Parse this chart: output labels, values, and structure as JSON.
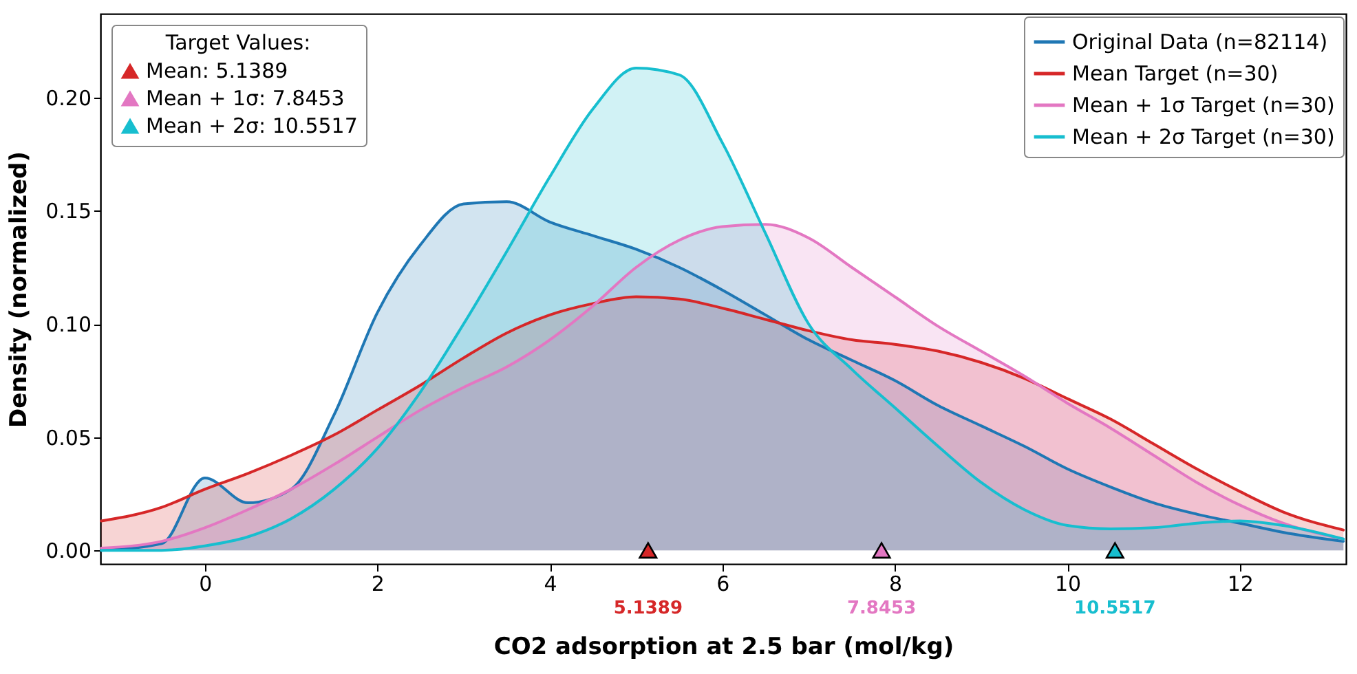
{
  "chart_data": {
    "type": "area",
    "xlabel": "CO2 adsorption at 2.5 bar (mol/kg)",
    "ylabel": "Density (normalized)",
    "legend_title": "Target Values:",
    "x": [
      -1.2,
      -0.5,
      0,
      0.5,
      1,
      1.5,
      2,
      2.5,
      3,
      3.5,
      4,
      4.5,
      5,
      5.5,
      6,
      6.5,
      7,
      7.5,
      8,
      8.5,
      9,
      9.5,
      10,
      10.5,
      11,
      11.5,
      12,
      12.5,
      13.2
    ],
    "series": [
      {
        "name": "Original Data (n=82114)",
        "color": "#1f77b4",
        "values": [
          0,
          0.003,
          0.032,
          0.021,
          0.027,
          0.06,
          0.105,
          0.135,
          0.153,
          0.154,
          0.145,
          0.139,
          0.133,
          0.125,
          0.115,
          0.104,
          0.093,
          0.084,
          0.075,
          0.064,
          0.055,
          0.046,
          0.036,
          0.028,
          0.021,
          0.016,
          0.012,
          0.008,
          0.004
        ]
      },
      {
        "name": "Mean Target (n=30)",
        "color": "#d62728",
        "values": [
          0.013,
          0.019,
          0.027,
          0.034,
          0.042,
          0.051,
          0.062,
          0.073,
          0.085,
          0.096,
          0.104,
          0.109,
          0.112,
          0.111,
          0.107,
          0.102,
          0.097,
          0.093,
          0.091,
          0.088,
          0.083,
          0.076,
          0.067,
          0.058,
          0.047,
          0.036,
          0.026,
          0.017,
          0.009
        ]
      },
      {
        "name": "Mean + 1σ Target (n=30)",
        "color": "#e377c2",
        "values": [
          0.001,
          0.004,
          0.01,
          0.018,
          0.027,
          0.038,
          0.05,
          0.062,
          0.072,
          0.081,
          0.093,
          0.108,
          0.125,
          0.137,
          0.143,
          0.144,
          0.138,
          0.125,
          0.112,
          0.099,
          0.088,
          0.077,
          0.065,
          0.054,
          0.042,
          0.03,
          0.02,
          0.012,
          0.005
        ]
      },
      {
        "name": "Mean + 2σ Target (n=30)",
        "color": "#17becf",
        "values": [
          0,
          0,
          0.002,
          0.006,
          0.014,
          0.027,
          0.045,
          0.07,
          0.1,
          0.132,
          0.165,
          0.195,
          0.213,
          0.21,
          0.18,
          0.14,
          0.1,
          0.08,
          0.063,
          0.046,
          0.03,
          0.018,
          0.011,
          0.0095,
          0.01,
          0.012,
          0.013,
          0.011,
          0.005
        ]
      },
      {
        "name": "Mean: 5.1389",
        "type": "scatter",
        "marker": "triangle",
        "color": "#d62728",
        "x": [
          5.1389
        ],
        "values": [
          0
        ]
      },
      {
        "name": "Mean + 1σ: 7.8453",
        "type": "scatter",
        "marker": "triangle",
        "color": "#e377c2",
        "x": [
          7.8453
        ],
        "values": [
          0
        ]
      },
      {
        "name": "Mean + 2σ: 10.5517",
        "type": "scatter",
        "marker": "triangle",
        "color": "#17becf",
        "x": [
          10.5517
        ],
        "values": [
          0
        ]
      }
    ],
    "annotations": [
      {
        "text": "5.1389",
        "x": 5.1389,
        "y": 0
      },
      {
        "text": "7.8453",
        "x": 7.8453,
        "y": 0
      },
      {
        "text": "10.5517",
        "x": 10.5517,
        "y": 0
      }
    ],
    "xlim": [
      -1.21,
      13.23
    ],
    "ylim": [
      -0.006,
      0.237
    ],
    "xticks": [
      0,
      2,
      4,
      6,
      8,
      10,
      12
    ],
    "yticks": [
      {
        "value": 0,
        "label": "0.00"
      },
      {
        "value": 0.05,
        "label": "0.05"
      },
      {
        "value": 0.1,
        "label": "0.10"
      },
      {
        "value": 0.15,
        "label": "0.15"
      },
      {
        "value": 0.2,
        "label": "0.20"
      }
    ],
    "legend": "top right",
    "grid": false,
    "line_style": "solid"
  }
}
